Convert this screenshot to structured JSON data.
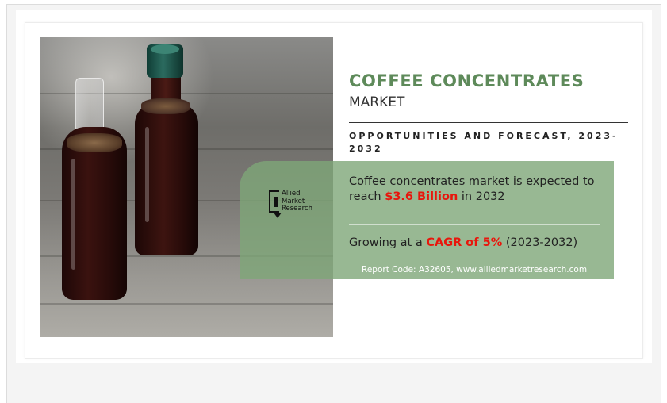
{
  "headline": {
    "title": "COFFEE CONCENTRATES",
    "subtitle": "MARKET",
    "forecast_label": "OPPORTUNITIES AND FORECAST, 2023-2032"
  },
  "logo": {
    "line1": "Allied",
    "line2": "Market",
    "line3": "Research"
  },
  "projection": {
    "prefix": "Coffee concentrates market is expected to reach ",
    "value": "$3.6 Billion",
    "suffix": " in 2032"
  },
  "growth": {
    "prefix": "Growing at a ",
    "value": "CAGR of 5%",
    "suffix": " (2023-2032)"
  },
  "footer": {
    "report_line": "Report Code: A32605, www.alliedmarketresearch.com"
  },
  "colors": {
    "title_green": "#5e8a5a",
    "box_green": "#7ea678",
    "highlight_red": "#e8160c"
  }
}
